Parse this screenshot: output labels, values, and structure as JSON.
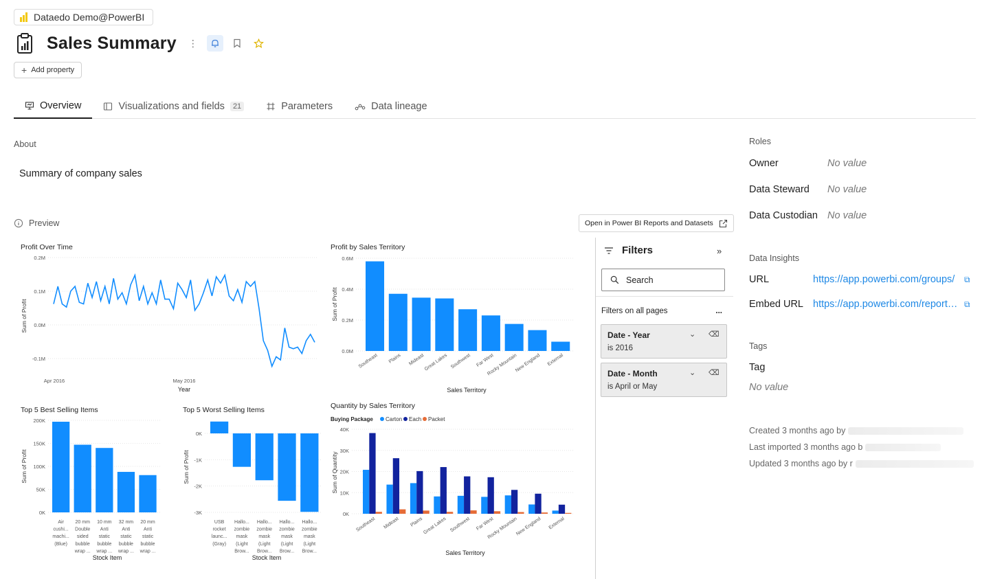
{
  "workspace": {
    "name": "Dataedo Demo@PowerBI"
  },
  "header": {
    "title": "Sales Summary",
    "add_property": "Add property"
  },
  "tabs": [
    {
      "label": "Overview",
      "active": true
    },
    {
      "label": "Visualizations and fields",
      "count": "21"
    },
    {
      "label": "Parameters"
    },
    {
      "label": "Data lineage"
    }
  ],
  "about": {
    "label": "About",
    "text": "Summary of company sales"
  },
  "preview": {
    "label": "Preview",
    "open_button": "Open in Power BI Reports and Datasets"
  },
  "filters": {
    "title": "Filters",
    "search_placeholder": "Search",
    "section": "Filters on all pages",
    "more": "...",
    "items": [
      {
        "name": "Date - Year",
        "value": "is 2016"
      },
      {
        "name": "Date - Month",
        "value": "is April or May"
      }
    ]
  },
  "roles": {
    "label": "Roles",
    "items": [
      {
        "name": "Owner",
        "value": "No value"
      },
      {
        "name": "Data Steward",
        "value": "No value"
      },
      {
        "name": "Data Custodian",
        "value": "No value"
      }
    ]
  },
  "insights": {
    "label": "Data Insights",
    "items": [
      {
        "name": "URL",
        "value": "https://app.powerbi.com/groups/"
      },
      {
        "name": "Embed URL",
        "value": "https://app.powerbi.com/reportEmbed"
      }
    ]
  },
  "tags": {
    "label": "Tags",
    "tag_label": "Tag",
    "value": "No value"
  },
  "meta": {
    "created": "Created 3 months ago by",
    "imported": "Last imported 3 months ago b",
    "updated": "Updated 3 months ago by r"
  },
  "colors": {
    "bar": "#118dff",
    "carton": "#118dff",
    "each": "#12239e",
    "packet": "#e66c37",
    "link": "#1e88e5"
  },
  "chart_data": [
    {
      "type": "line",
      "title": "Profit Over Time",
      "xlabel": "Year",
      "ylabel": "Sum of Profit",
      "x_ticks": [
        "Apr 2016",
        "May 2016"
      ],
      "y_ticks": [
        "0.2M",
        "0.1M",
        "0.0M",
        "-0.1M"
      ],
      "ylim": [
        -150000,
        200000
      ],
      "values": [
        55000,
        110000,
        55000,
        45000,
        95000,
        110000,
        60000,
        55000,
        120000,
        75000,
        125000,
        65000,
        110000,
        55000,
        135000,
        70000,
        90000,
        55000,
        115000,
        145000,
        65000,
        110000,
        55000,
        90000,
        55000,
        130000,
        70000,
        70000,
        40000,
        120000,
        100000,
        75000,
        130000,
        35000,
        55000,
        90000,
        130000,
        80000,
        140000,
        120000,
        145000,
        80000,
        65000,
        100000,
        60000,
        125000,
        110000,
        125000,
        40000,
        -60000,
        -90000,
        -140000,
        -110000,
        -120000,
        -20000,
        -80000,
        -85000,
        -80000,
        -100000,
        -60000,
        -40000,
        -65000
      ]
    },
    {
      "type": "bar",
      "title": "Profit by Sales Territory",
      "xlabel": "Sales Territory",
      "ylabel": "Sum of Profit",
      "categories": [
        "Southeast",
        "Plains",
        "Mideast",
        "Great Lakes",
        "Southwest",
        "Far West",
        "Rocky Mountain",
        "New England",
        "External"
      ],
      "values": [
        580000,
        370000,
        345000,
        340000,
        270000,
        230000,
        175000,
        135000,
        60000
      ],
      "y_ticks": [
        "0.6M",
        "0.4M",
        "0.2M",
        "0.0M"
      ],
      "ylim": [
        0,
        600000
      ]
    },
    {
      "type": "bar",
      "title": "Top 5 Best Selling Items",
      "xlabel": "Stock Item",
      "ylabel": "Sum of Profit",
      "categories": [
        [
          "Air",
          "cushi...",
          "machi...",
          "(Blue)"
        ],
        [
          "20 mm",
          "Double",
          "sided",
          "bubble",
          "wrap ..."
        ],
        [
          "10 mm",
          "Anti",
          "static",
          "bubble",
          "wrap ..."
        ],
        [
          "32 mm",
          "Anti",
          "static",
          "bubble",
          "wrap ..."
        ],
        [
          "20 mm",
          "Anti",
          "static",
          "bubble",
          "wrap ..."
        ]
      ],
      "values": [
        197000,
        147000,
        140000,
        88000,
        81000
      ],
      "y_ticks": [
        "200K",
        "150K",
        "100K",
        "50K",
        "0K"
      ],
      "ylim": [
        0,
        200000
      ]
    },
    {
      "type": "bar",
      "title": "Top 5 Worst Selling Items",
      "xlabel": "Stock Item",
      "ylabel": "Sum of Profit",
      "categories": [
        [
          "USB",
          "rocket",
          "launc...",
          "(Gray)"
        ],
        [
          "Hallo...",
          "zombie",
          "mask",
          "(Light",
          "Brow..."
        ],
        [
          "Hallo...",
          "zombie",
          "mask",
          "(Light",
          "Brow..."
        ],
        [
          "Hallo...",
          "zombie",
          "mask",
          "(Light",
          "Brow..."
        ],
        [
          "Hallo...",
          "zombie",
          "mask",
          "(Light",
          "Brow..."
        ]
      ],
      "values": [
        450,
        -1270,
        -1780,
        -2560,
        -2980
      ],
      "y_ticks": [
        "0K",
        "-1K",
        "-2K",
        "-3K"
      ],
      "ylim": [
        -3000,
        0
      ]
    },
    {
      "type": "bar",
      "title": "Quantity by Sales Territory",
      "legend_title": "Buying Package",
      "xlabel": "Sales Territory",
      "ylabel": "Sum of Quantity",
      "categories": [
        "Southeast",
        "Mideast",
        "Plains",
        "Great Lakes",
        "Southwest",
        "Far West",
        "Rocky Mountain",
        "New England",
        "External"
      ],
      "y_ticks": [
        "40K",
        "30K",
        "20K",
        "10K",
        "0K"
      ],
      "ylim": [
        0,
        40000
      ],
      "series": [
        {
          "name": "Carton",
          "values": [
            20800,
            13800,
            14500,
            8200,
            8500,
            8000,
            8700,
            4400,
            1500
          ]
        },
        {
          "name": "Each",
          "values": [
            38200,
            26300,
            20200,
            22100,
            17700,
            17300,
            11300,
            9500,
            4300
          ]
        },
        {
          "name": "Packet",
          "values": [
            900,
            2100,
            1500,
            900,
            1600,
            1200,
            800,
            600,
            400
          ]
        }
      ]
    }
  ]
}
